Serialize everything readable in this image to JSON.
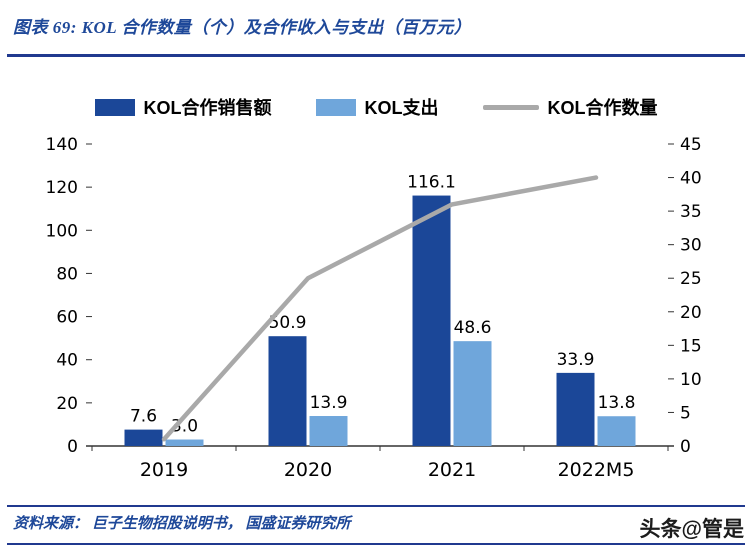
{
  "header": {
    "title": "图表 69:  KOL 合作数量（个）及合作收入与支出（百万元）"
  },
  "footer": {
    "source": "资料来源：  巨子生物招股说明书，  国盛证券研究所"
  },
  "watermark": "头条@管是",
  "colors": {
    "accent_blue": "#1e4899",
    "rule_blue": "#20398f",
    "bar_dark": "#1b4798",
    "bar_light": "#6fa6db",
    "line_gray": "#a9a9a9"
  },
  "chart_data": {
    "type": "bar",
    "title": "KOL 合作数量（个）及合作收入与支出（百万元）",
    "categories": [
      "2019",
      "2020",
      "2021",
      "2022M5"
    ],
    "series": [
      {
        "name": "KOL合作销售额",
        "type": "bar",
        "axis": "left",
        "color": "#1b4798",
        "values": [
          7.6,
          50.9,
          116.1,
          33.9
        ]
      },
      {
        "name": "KOL支出",
        "type": "bar",
        "axis": "left",
        "color": "#6fa6db",
        "values": [
          3.0,
          13.9,
          48.6,
          13.8
        ]
      },
      {
        "name": "KOL合作数量",
        "type": "line",
        "axis": "right",
        "color": "#a9a9a9",
        "values": [
          1,
          25,
          36,
          40
        ]
      }
    ],
    "left_axis": {
      "min": 0,
      "max": 140,
      "step": 20
    },
    "right_axis": {
      "min": 0,
      "max": 45,
      "step": 5
    },
    "grid": false,
    "legend_position": "top"
  }
}
